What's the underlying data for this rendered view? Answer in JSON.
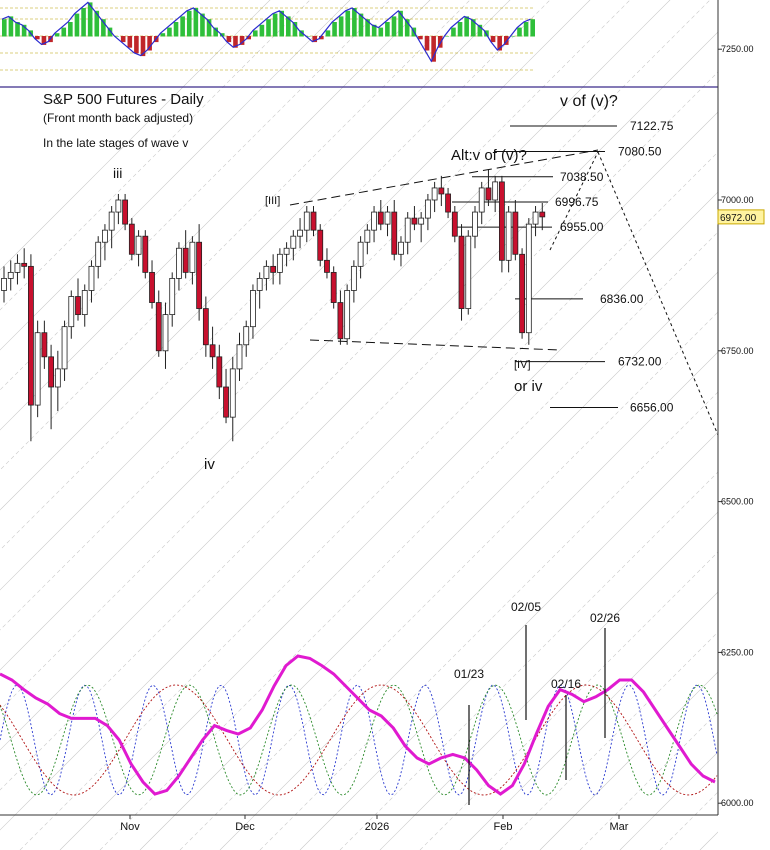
{
  "chart_data": {
    "type": "candlestick",
    "title": "S&P 500 Futures - Daily",
    "subtitle": "(Front month back adjusted)",
    "note": "In the late stages of wave v",
    "y_axis": {
      "ylim": [
        5995,
        7335
      ],
      "ticks": [
        {
          "value": 7250,
          "label": "7250.00"
        },
        {
          "value": 7000,
          "label": "7000.00"
        },
        {
          "value": 6750,
          "label": "6750.00"
        },
        {
          "value": 6500,
          "label": "6500.00"
        },
        {
          "value": 6250,
          "label": "6250.00"
        },
        {
          "value": 6000,
          "label": "6000.00"
        }
      ],
      "last_price": {
        "value": 6972,
        "label": "6972.00"
      }
    },
    "x_axis": {
      "ticks": [
        "Nov",
        "Dec",
        "2026",
        "Feb",
        "Mar"
      ]
    },
    "price_levels": [
      {
        "value": 7122.75,
        "label": "7122.75"
      },
      {
        "value": 7080.5,
        "label": "7080.50"
      },
      {
        "value": 7038.5,
        "label": "7038.50"
      },
      {
        "value": 6996.75,
        "label": "6996.75"
      },
      {
        "value": 6955.0,
        "label": "6955.00"
      },
      {
        "value": 6836.0,
        "label": "6836.00"
      },
      {
        "value": 6732.0,
        "label": "6732.00"
      },
      {
        "value": 6656.0,
        "label": "6656.00"
      }
    ],
    "wave_labels": [
      "iii",
      "iv",
      "[III]",
      "[IV]",
      "or iv",
      "v of (v)?",
      "Alt:v of (v)?"
    ],
    "cycle_dates": [
      "01/23",
      "02/05",
      "02/16",
      "02/26"
    ],
    "candles": [
      [
        6850,
        6890,
        6830,
        6870
      ],
      [
        6870,
        6900,
        6850,
        6880
      ],
      [
        6880,
        6910,
        6860,
        6895
      ],
      [
        6895,
        6920,
        6870,
        6890
      ],
      [
        6890,
        6910,
        6600,
        6660
      ],
      [
        6660,
        6800,
        6640,
        6780
      ],
      [
        6780,
        6800,
        6720,
        6740
      ],
      [
        6740,
        6760,
        6620,
        6690
      ],
      [
        6690,
        6750,
        6650,
        6720
      ],
      [
        6720,
        6800,
        6700,
        6790
      ],
      [
        6790,
        6850,
        6770,
        6840
      ],
      [
        6840,
        6870,
        6800,
        6810
      ],
      [
        6810,
        6860,
        6790,
        6850
      ],
      [
        6850,
        6900,
        6830,
        6890
      ],
      [
        6890,
        6940,
        6870,
        6930
      ],
      [
        6930,
        6960,
        6900,
        6950
      ],
      [
        6950,
        6990,
        6920,
        6980
      ],
      [
        6980,
        7010,
        6960,
        7000
      ],
      [
        7000,
        7010,
        6950,
        6960
      ],
      [
        6960,
        6970,
        6900,
        6910
      ],
      [
        6910,
        6950,
        6890,
        6940
      ],
      [
        6940,
        6950,
        6870,
        6880
      ],
      [
        6880,
        6900,
        6820,
        6830
      ],
      [
        6830,
        6850,
        6740,
        6750
      ],
      [
        6750,
        6830,
        6720,
        6810
      ],
      [
        6810,
        6880,
        6790,
        6870
      ],
      [
        6870,
        6930,
        6850,
        6920
      ],
      [
        6920,
        6950,
        6870,
        6880
      ],
      [
        6880,
        6940,
        6860,
        6930
      ],
      [
        6930,
        6960,
        6800,
        6820
      ],
      [
        6820,
        6840,
        6740,
        6760
      ],
      [
        6760,
        6790,
        6720,
        6740
      ],
      [
        6740,
        6760,
        6670,
        6690
      ],
      [
        6690,
        6720,
        6630,
        6640
      ],
      [
        6640,
        6740,
        6600,
        6720
      ],
      [
        6720,
        6780,
        6700,
        6760
      ],
      [
        6760,
        6800,
        6740,
        6790
      ],
      [
        6790,
        6860,
        6770,
        6850
      ],
      [
        6850,
        6880,
        6820,
        6870
      ],
      [
        6870,
        6900,
        6850,
        6890
      ],
      [
        6890,
        6910,
        6860,
        6880
      ],
      [
        6880,
        6920,
        6860,
        6910
      ],
      [
        6910,
        6930,
        6890,
        6920
      ],
      [
        6920,
        6950,
        6900,
        6940
      ],
      [
        6940,
        6970,
        6920,
        6950
      ],
      [
        6950,
        6990,
        6930,
        6980
      ],
      [
        6980,
        6990,
        6940,
        6950
      ],
      [
        6950,
        6960,
        6890,
        6900
      ],
      [
        6900,
        6920,
        6870,
        6880
      ],
      [
        6880,
        6890,
        6820,
        6830
      ],
      [
        6830,
        6850,
        6760,
        6770
      ],
      [
        6770,
        6860,
        6760,
        6850
      ],
      [
        6850,
        6900,
        6830,
        6890
      ],
      [
        6890,
        6940,
        6870,
        6930
      ],
      [
        6930,
        6960,
        6910,
        6950
      ],
      [
        6950,
        6990,
        6930,
        6980
      ],
      [
        6980,
        7000,
        6950,
        6960
      ],
      [
        6960,
        6990,
        6940,
        6980
      ],
      [
        6980,
        7000,
        6900,
        6910
      ],
      [
        6910,
        6940,
        6890,
        6930
      ],
      [
        6930,
        6980,
        6910,
        6970
      ],
      [
        6970,
        6990,
        6950,
        6960
      ],
      [
        6960,
        6980,
        6930,
        6970
      ],
      [
        6970,
        7010,
        6950,
        7000
      ],
      [
        7000,
        7030,
        6980,
        7020
      ],
      [
        7020,
        7040,
        6990,
        7010
      ],
      [
        7010,
        7020,
        6970,
        6980
      ],
      [
        6980,
        6990,
        6930,
        6940
      ],
      [
        6940,
        6960,
        6800,
        6820
      ],
      [
        6820,
        6950,
        6810,
        6940
      ],
      [
        6940,
        6990,
        6920,
        6980
      ],
      [
        6980,
        7030,
        6960,
        7020
      ],
      [
        7020,
        7050,
        6990,
        7000
      ],
      [
        7000,
        7040,
        6980,
        7030
      ],
      [
        7030,
        7040,
        6880,
        6900
      ],
      [
        6900,
        6990,
        6880,
        6980
      ],
      [
        6980,
        7000,
        6900,
        6910
      ],
      [
        6910,
        6920,
        6770,
        6780
      ],
      [
        6780,
        6970,
        6760,
        6960
      ],
      [
        6960,
        6990,
        6940,
        6980
      ],
      [
        6980,
        6995,
        6950,
        6972
      ]
    ],
    "indicator": {
      "type": "histogram",
      "values": [
        0.6,
        0.7,
        0.5,
        0.4,
        0.2,
        -0.1,
        -0.3,
        -0.2,
        0.1,
        0.3,
        0.5,
        0.8,
        1.0,
        1.2,
        0.9,
        0.6,
        0.3,
        0.0,
        -0.2,
        -0.4,
        -0.6,
        -0.7,
        -0.5,
        -0.2,
        0.1,
        0.3,
        0.5,
        0.7,
        0.9,
        1.0,
        0.8,
        0.6,
        0.3,
        0.1,
        -0.2,
        -0.4,
        -0.3,
        -0.1,
        0.2,
        0.4,
        0.6,
        0.8,
        0.9,
        0.7,
        0.5,
        0.2,
        0.0,
        -0.2,
        -0.1,
        0.2,
        0.5,
        0.7,
        0.9,
        1.0,
        0.8,
        0.6,
        0.4,
        0.3,
        0.5,
        0.7,
        0.9,
        0.6,
        0.3,
        -0.1,
        -0.5,
        -0.9,
        -0.4,
        0.0,
        0.3,
        0.5,
        0.7,
        0.6,
        0.4,
        0.2,
        -0.2,
        -0.5,
        -0.3,
        0.0,
        0.3,
        0.5,
        0.6
      ]
    },
    "cycle": {
      "type": "line",
      "values": [
        0.55,
        0.5,
        0.42,
        0.35,
        0.3,
        0.22,
        0.18,
        0.18,
        0.18,
        0.12,
        0.0,
        -0.2,
        -0.35,
        -0.45,
        -0.42,
        -0.3,
        -0.15,
        0.0,
        0.12,
        0.08,
        0.05,
        0.1,
        0.25,
        0.45,
        0.62,
        0.7,
        0.68,
        0.62,
        0.55,
        0.45,
        0.35,
        0.25,
        0.2,
        0.1,
        -0.05,
        -0.15,
        -0.2,
        -0.15,
        -0.12,
        -0.15,
        -0.25,
        -0.38,
        -0.45,
        -0.38,
        -0.2,
        0.05,
        0.28,
        0.42,
        0.38,
        0.32,
        0.36,
        0.42,
        0.5,
        0.5,
        0.4,
        0.25,
        0.1,
        -0.05,
        -0.2,
        -0.3,
        -0.35
      ]
    }
  }
}
